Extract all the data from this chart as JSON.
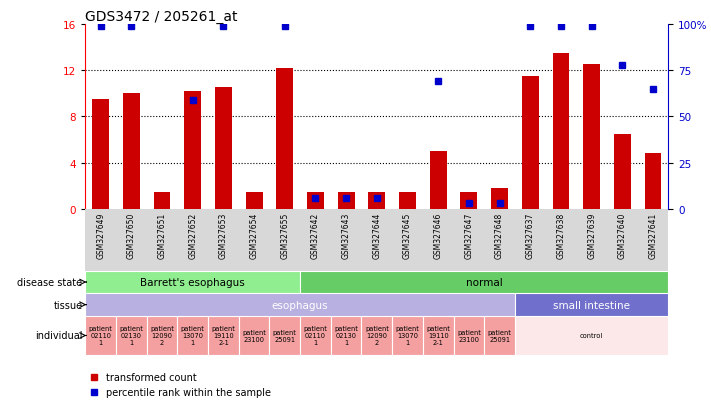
{
  "title": "GDS3472 / 205261_at",
  "samples": [
    "GSM327649",
    "GSM327650",
    "GSM327651",
    "GSM327652",
    "GSM327653",
    "GSM327654",
    "GSM327655",
    "GSM327642",
    "GSM327643",
    "GSM327644",
    "GSM327645",
    "GSM327646",
    "GSM327647",
    "GSM327648",
    "GSM327637",
    "GSM327638",
    "GSM327639",
    "GSM327640",
    "GSM327641"
  ],
  "red_values": [
    9.5,
    10.0,
    1.5,
    10.2,
    10.5,
    1.5,
    12.2,
    1.5,
    1.5,
    1.5,
    1.5,
    5.0,
    1.5,
    1.8,
    11.5,
    13.5,
    12.5,
    6.5,
    4.8
  ],
  "blue_pct": [
    99,
    99,
    null,
    59,
    99,
    null,
    99,
    6,
    6,
    6,
    null,
    69,
    3,
    3,
    99,
    99,
    99,
    78,
    65
  ],
  "ylim_left": [
    0,
    16
  ],
  "ylim_right": [
    0,
    100
  ],
  "yticks_left": [
    0,
    4,
    8,
    12,
    16
  ],
  "yticks_right": [
    0,
    25,
    50,
    75,
    100
  ],
  "bar_color": "#cc0000",
  "dot_color": "#0000cc",
  "hline_values": [
    4,
    8,
    12
  ],
  "disease_state_groups": [
    {
      "label": "Barrett's esophagus",
      "start": 0,
      "end": 7,
      "color": "#90ee90"
    },
    {
      "label": "normal",
      "start": 7,
      "end": 19,
      "color": "#66cc66"
    }
  ],
  "tissue_groups": [
    {
      "label": "esophagus",
      "start": 0,
      "end": 14,
      "color": "#b8b0e0"
    },
    {
      "label": "small intestine",
      "start": 14,
      "end": 19,
      "color": "#7070cc"
    }
  ],
  "individual_groups": [
    {
      "label": "patient\n02110\n1",
      "start": 0,
      "end": 1,
      "color": "#f4a0a0"
    },
    {
      "label": "patient\n02130\n1",
      "start": 1,
      "end": 2,
      "color": "#f4a0a0"
    },
    {
      "label": "patient\n12090\n2",
      "start": 2,
      "end": 3,
      "color": "#f4a0a0"
    },
    {
      "label": "patient\n13070\n1",
      "start": 3,
      "end": 4,
      "color": "#f4a0a0"
    },
    {
      "label": "patient\n19110\n2-1",
      "start": 4,
      "end": 5,
      "color": "#f4a0a0"
    },
    {
      "label": "patient\n23100",
      "start": 5,
      "end": 6,
      "color": "#f4a0a0"
    },
    {
      "label": "patient\n25091",
      "start": 6,
      "end": 7,
      "color": "#f4a0a0"
    },
    {
      "label": "patient\n02110\n1",
      "start": 7,
      "end": 8,
      "color": "#f4a0a0"
    },
    {
      "label": "patient\n02130\n1",
      "start": 8,
      "end": 9,
      "color": "#f4a0a0"
    },
    {
      "label": "patient\n12090\n2",
      "start": 9,
      "end": 10,
      "color": "#f4a0a0"
    },
    {
      "label": "patient\n13070\n1",
      "start": 10,
      "end": 11,
      "color": "#f4a0a0"
    },
    {
      "label": "patient\n19110\n2-1",
      "start": 11,
      "end": 12,
      "color": "#f4a0a0"
    },
    {
      "label": "patient\n23100",
      "start": 12,
      "end": 13,
      "color": "#f4a0a0"
    },
    {
      "label": "patient\n25091",
      "start": 13,
      "end": 14,
      "color": "#f4a0a0"
    },
    {
      "label": "control",
      "start": 14,
      "end": 19,
      "color": "#fce8e8"
    }
  ],
  "row_labels": [
    "disease state",
    "tissue",
    "individual"
  ],
  "legend_items": [
    {
      "color": "#cc0000",
      "label": "transformed count"
    },
    {
      "color": "#0000cc",
      "label": "percentile rank within the sample"
    }
  ],
  "xtick_bg": "#d8d8d8"
}
